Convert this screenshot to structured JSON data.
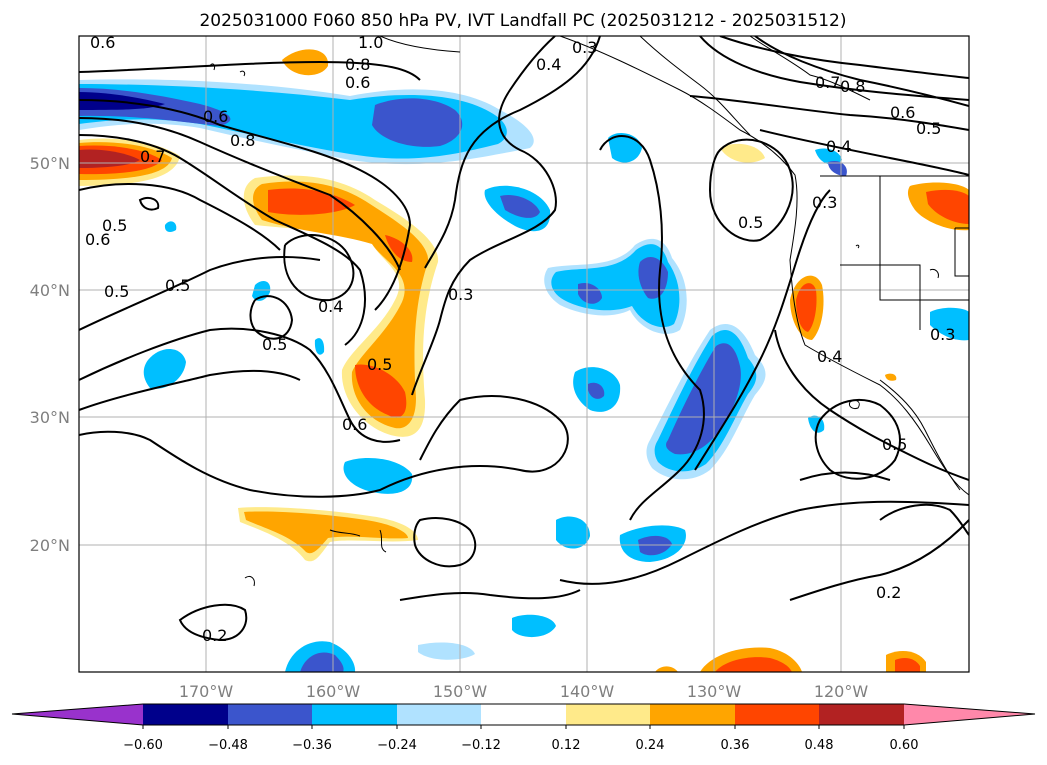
{
  "title": "2025031000 F060 850 hPa PV, IVT Landfall PC (2025031212 - 2025031512)",
  "map": {
    "lon_labels": [
      "170°W",
      "160°W",
      "150°W",
      "140°W",
      "130°W",
      "120°W"
    ],
    "lat_labels": [
      "50°N",
      "40°N",
      "30°N",
      "20°N"
    ],
    "contour_labels": [
      "0.6",
      "1.0",
      "0.8",
      "0.6",
      "0.3",
      "0.4",
      "0.7",
      "0.8",
      "0.6",
      "0.5",
      "0.6",
      "0.8",
      "0.7",
      "0.4",
      "0.5",
      "0.6",
      "0.5",
      "0.3",
      "0.5",
      "0.5",
      "0.4",
      "0.3",
      "0.5",
      "0.5",
      "0.6",
      "0.4",
      "0.5",
      "0.2",
      "0.3",
      "0.2"
    ]
  },
  "colorbar": {
    "ticks": [
      "−0.60",
      "−0.48",
      "−0.36",
      "−0.24",
      "−0.12",
      "0.12",
      "0.24",
      "0.36",
      "0.48",
      "0.60"
    ],
    "colors": [
      "#9932cc",
      "#00008b",
      "#3b55cc",
      "#00bfff",
      "#b0e2ff",
      "#ffffff",
      "#ffea8a",
      "#ffa500",
      "#ff4500",
      "#b22222",
      "#ff88aa"
    ]
  },
  "colors": {
    "deep_blue": "#3b55cc",
    "sky_blue": "#00bfff",
    "light_blue": "#b0e2ff",
    "yellow": "#ffea8a",
    "orange": "#ffa500",
    "red_orange": "#ff4500",
    "dark_red": "#b22222",
    "grid": "#b0b0b0"
  }
}
